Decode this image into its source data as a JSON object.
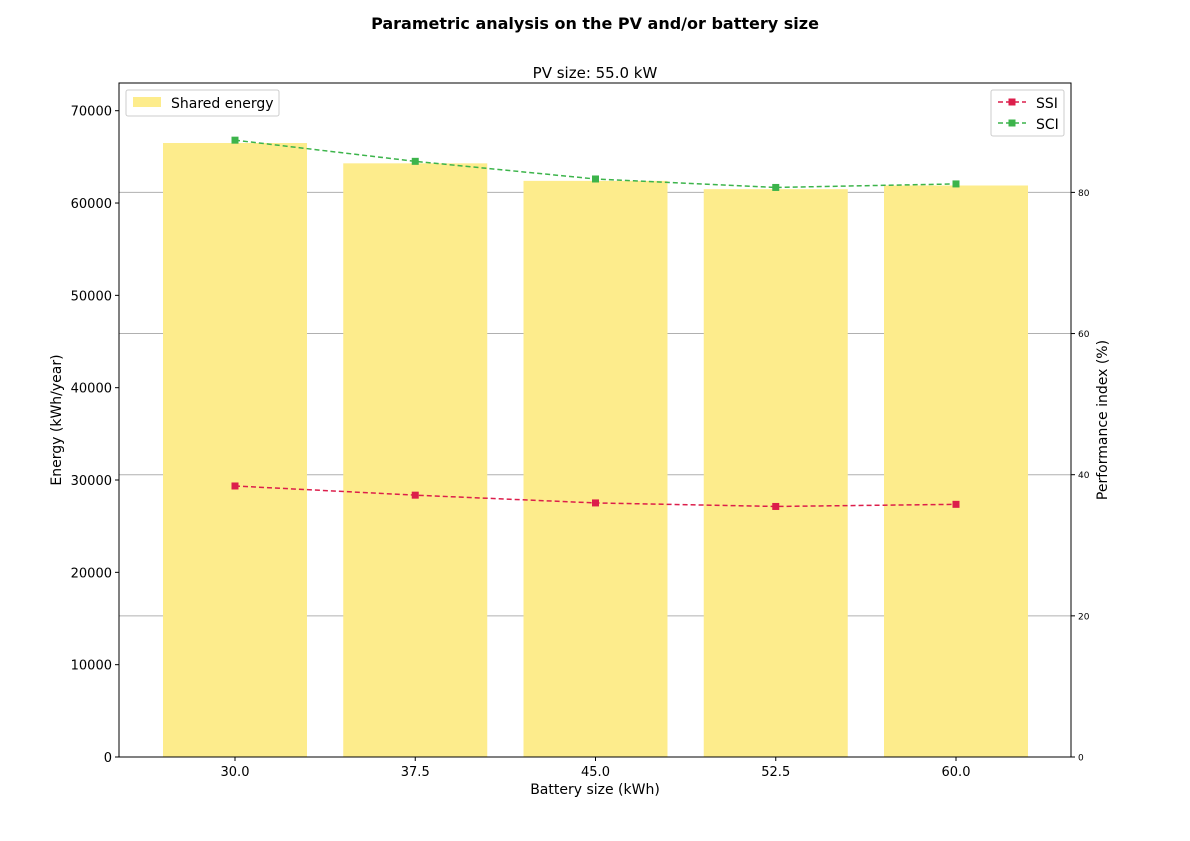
{
  "figure": {
    "suptitle": "Parametric analysis on the PV and/or battery size"
  },
  "chart_data": {
    "type": "bar",
    "title": "PV size: 55.0 kW",
    "xlabel": "Battery size (kWh)",
    "ylabel": "Energy (kWh/year)",
    "y2label": "Performance index (%)",
    "categories": [
      "30.0",
      "37.5",
      "45.0",
      "52.5",
      "60.0"
    ],
    "ylim": [
      0,
      73000
    ],
    "y2lim": [
      0,
      95.5
    ],
    "yticks": [
      0,
      10000,
      20000,
      30000,
      40000,
      50000,
      60000,
      70000
    ],
    "y2ticks": [
      0,
      20,
      40,
      60,
      80
    ],
    "grid": "horizontal on secondary axis",
    "bars": {
      "name": "Shared energy",
      "color": "#fdec8c",
      "values": [
        66500,
        64300,
        62400,
        61500,
        61900
      ]
    },
    "series": [
      {
        "name": "SSI",
        "axis": "secondary",
        "color": "#dc1e4b",
        "marker": "square",
        "linestyle": "dashed",
        "values": [
          38.4,
          37.1,
          36.0,
          35.5,
          35.8
        ]
      },
      {
        "name": "SCI",
        "axis": "secondary",
        "color": "#3cb44b",
        "marker": "square",
        "linestyle": "dashed",
        "values": [
          87.4,
          84.4,
          81.9,
          80.7,
          81.2
        ]
      }
    ],
    "legend_left": {
      "placement": "top-left",
      "entries": [
        "Shared energy"
      ]
    },
    "legend_right": {
      "placement": "top-right",
      "entries": [
        "SSI",
        "SCI"
      ]
    }
  }
}
